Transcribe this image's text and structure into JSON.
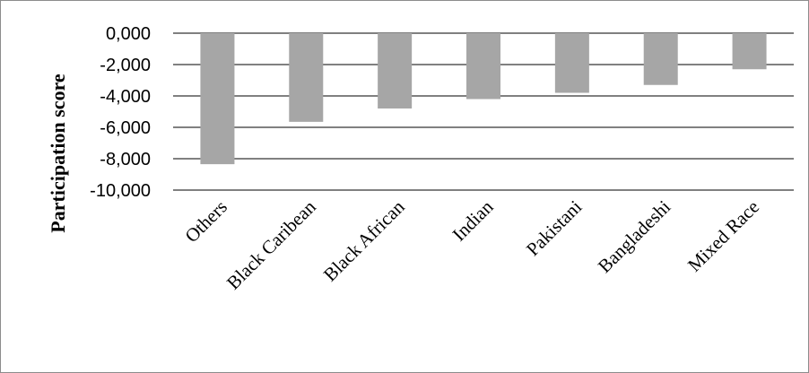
{
  "chart_data": {
    "type": "bar",
    "title": "",
    "xlabel": "",
    "ylabel": "Participation score",
    "categories": [
      "Others",
      "Black Caribean",
      "Black African",
      "Indian",
      "Pakistani",
      "Bangladeshi",
      "Mixed Race"
    ],
    "series": [
      {
        "values": [
          -8.35,
          -5.65,
          -4.8,
          -4.2,
          -3.8,
          -3.3,
          -2.3
        ]
      }
    ],
    "ylim": [
      -10,
      0
    ],
    "yticks": [
      0,
      -2,
      -4,
      -6,
      -8,
      -10
    ],
    "ytick_labels": [
      "0,000",
      "-2,000",
      "-4,000",
      "-6,000",
      "-8,000",
      "-10,000"
    ],
    "grid": true,
    "legend": "none",
    "bar_color": "#a6a6a6",
    "gridline_color": "#000000"
  }
}
